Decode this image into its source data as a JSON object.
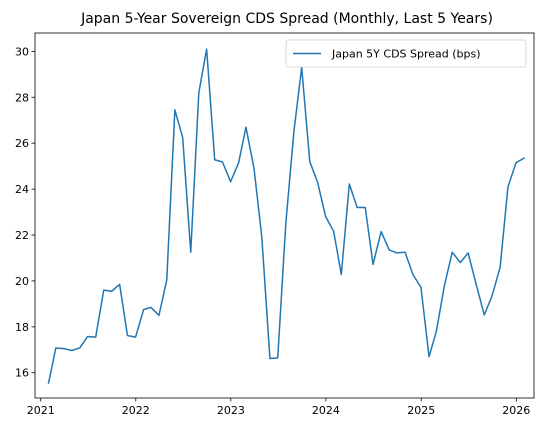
{
  "chart_data": {
    "type": "line",
    "title": "Japan 5-Year Sovereign CDS Spread (Monthly, Last 5 Years)",
    "xlabel": "",
    "ylabel": "",
    "xlim": [
      "2020-12-10",
      "2026-03-10"
    ],
    "ylim": [
      14.9,
      30.8
    ],
    "x_ticks": [
      "2021",
      "2022",
      "2023",
      "2024",
      "2025",
      "2026"
    ],
    "x_tick_dates": [
      "2021-01-01",
      "2022-01-01",
      "2023-01-01",
      "2024-01-01",
      "2025-01-01",
      "2026-01-01"
    ],
    "y_ticks": [
      16,
      18,
      20,
      22,
      24,
      26,
      28,
      30
    ],
    "grid": false,
    "legend_position": "top-right",
    "series": [
      {
        "name": "Japan 5Y CDS Spread (bps)",
        "color": "#1f77b4",
        "x": [
          "2021-01-31",
          "2021-02-28",
          "2021-03-31",
          "2021-04-30",
          "2021-05-31",
          "2021-06-30",
          "2021-07-31",
          "2021-08-31",
          "2021-09-30",
          "2021-10-31",
          "2021-11-30",
          "2021-12-31",
          "2022-01-31",
          "2022-02-28",
          "2022-03-31",
          "2022-04-30",
          "2022-05-31",
          "2022-06-30",
          "2022-07-31",
          "2022-08-31",
          "2022-09-30",
          "2022-10-31",
          "2022-11-30",
          "2022-12-31",
          "2023-01-31",
          "2023-02-28",
          "2023-03-31",
          "2023-04-30",
          "2023-05-31",
          "2023-06-30",
          "2023-07-31",
          "2023-08-31",
          "2023-09-30",
          "2023-10-31",
          "2023-11-30",
          "2023-12-31",
          "2024-01-31",
          "2024-02-29",
          "2024-03-31",
          "2024-04-30",
          "2024-05-31",
          "2024-06-30",
          "2024-07-31",
          "2024-08-31",
          "2024-09-30",
          "2024-10-31",
          "2024-11-30",
          "2024-12-31",
          "2025-01-31",
          "2025-02-28",
          "2025-03-31",
          "2025-04-30",
          "2025-05-31",
          "2025-06-30",
          "2025-07-31",
          "2025-08-31",
          "2025-09-30",
          "2025-10-31",
          "2025-11-30",
          "2025-12-31",
          "2026-01-31"
        ],
        "values": [
          15.55,
          17.08,
          17.05,
          16.97,
          17.08,
          17.58,
          17.55,
          19.6,
          19.55,
          19.85,
          17.62,
          17.55,
          18.75,
          18.85,
          18.5,
          20.05,
          27.45,
          26.25,
          21.25,
          28.2,
          30.1,
          25.28,
          25.18,
          24.32,
          25.15,
          26.7,
          24.9,
          21.9,
          16.62,
          16.65,
          22.5,
          26.5,
          29.3,
          25.2,
          24.3,
          22.8,
          22.15,
          20.28,
          24.22,
          23.2,
          23.2,
          20.72,
          22.15,
          21.35,
          21.22,
          21.25,
          20.28,
          19.72,
          16.7,
          17.8,
          19.8,
          21.25,
          20.8,
          21.22,
          19.85,
          18.52,
          19.35,
          20.6,
          24.1,
          25.15,
          25.35
        ]
      }
    ]
  }
}
